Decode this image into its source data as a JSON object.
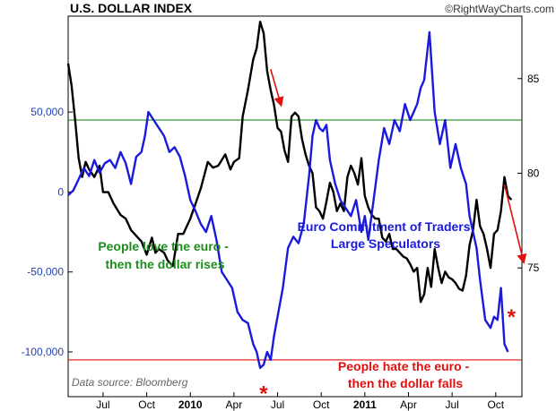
{
  "colors": {
    "top_line": "#000000",
    "bottom_line": "#1a1adc",
    "upper_threshold": "#1e8c1e",
    "lower_threshold": "#e01010",
    "arrow": "#e01010",
    "star": "#e01010"
  },
  "chart_data": [
    {
      "type": "line",
      "title": "U.S. DOLLAR INDEX",
      "credit": "©RightWayCharts.com",
      "source": "Data source: Bloomberg",
      "x_ticks": [
        {
          "x": 2009.5,
          "label": "Jul",
          "bold": false
        },
        {
          "x": 2009.75,
          "label": "Oct",
          "bold": false
        },
        {
          "x": 2010.0,
          "label": "2010",
          "bold": true
        },
        {
          "x": 2010.25,
          "label": "Apr",
          "bold": false
        },
        {
          "x": 2010.5,
          "label": "Jul",
          "bold": false
        },
        {
          "x": 2010.75,
          "label": "Oct",
          "bold": false
        },
        {
          "x": 2011.0,
          "label": "2011",
          "bold": true
        },
        {
          "x": 2011.25,
          "label": "Apr",
          "bold": false
        },
        {
          "x": 2011.5,
          "label": "Jul",
          "bold": false
        },
        {
          "x": 2011.75,
          "label": "Oct",
          "bold": false
        }
      ],
      "xlim": [
        2009.3,
        2011.9
      ],
      "y_ticks": [
        {
          "value": 75,
          "label": "75"
        },
        {
          "value": 80,
          "label": "80"
        },
        {
          "value": 85,
          "label": "85"
        }
      ],
      "ylim": [
        68.2,
        88.3
      ],
      "series": [
        {
          "x": [
            2009.3,
            2009.32,
            2009.34,
            2009.36,
            2009.38,
            2009.4,
            2009.42,
            2009.45,
            2009.48,
            2009.5,
            2009.53,
            2009.56,
            2009.6,
            2009.63,
            2009.66,
            2009.7,
            2009.72,
            2009.75,
            2009.78,
            2009.8,
            2009.82,
            2009.85,
            2009.87,
            2009.9,
            2009.93,
            2009.96,
            2010.0,
            2010.03,
            2010.06,
            2010.1,
            2010.13,
            2010.16,
            2010.2,
            2010.23,
            2010.25,
            2010.28,
            2010.3,
            2010.33,
            2010.36,
            2010.38,
            2010.4,
            2010.42,
            2010.44,
            2010.46,
            2010.48,
            2010.5,
            2010.52,
            2010.54,
            2010.56,
            2010.58,
            2010.6,
            2010.62,
            2010.64,
            2010.66,
            2010.68,
            2010.7,
            2010.72,
            2010.74,
            2010.76,
            2010.78,
            2010.8,
            2010.82,
            2010.84,
            2010.86,
            2010.88,
            2010.9,
            2010.92,
            2010.94,
            2010.96,
            2010.98,
            2011.0,
            2011.02,
            2011.04,
            2011.06,
            2011.08,
            2011.1,
            2011.12,
            2011.14,
            2011.16,
            2011.18,
            2011.2,
            2011.22,
            2011.24,
            2011.26,
            2011.28,
            2011.3,
            2011.32,
            2011.34,
            2011.36,
            2011.38,
            2011.4,
            2011.42,
            2011.44,
            2011.46,
            2011.48,
            2011.5,
            2011.52,
            2011.54,
            2011.56,
            2011.58,
            2011.6,
            2011.62,
            2011.64,
            2011.66,
            2011.68,
            2011.7,
            2011.72,
            2011.74,
            2011.76,
            2011.78,
            2011.8,
            2011.82,
            2011.84
          ],
          "y": [
            85.8,
            84.6,
            82.8,
            80.8,
            79.8,
            80.6,
            80.2,
            79.8,
            80.4,
            79.0,
            79.0,
            78.4,
            77.8,
            77.6,
            77.0,
            76.6,
            76.4,
            75.7,
            76.6,
            75.8,
            76.0,
            75.8,
            75.4,
            75.1,
            76.8,
            76.8,
            77.6,
            78.4,
            79.2,
            80.6,
            80.3,
            80.4,
            81.0,
            80.2,
            80.6,
            80.8,
            83.0,
            84.4,
            86.0,
            86.6,
            88.0,
            87.4,
            85.4,
            84.4,
            83.6,
            82.4,
            82.2,
            81.2,
            80.6,
            83.0,
            83.2,
            83.0,
            81.8,
            81.0,
            80.4,
            80.0,
            78.2,
            78.0,
            77.6,
            78.5,
            79.5,
            79.0,
            78.0,
            78.4,
            78.0,
            79.8,
            80.4,
            80.0,
            79.4,
            80.8,
            78.8,
            78.2,
            77.8,
            77.6,
            77.6,
            76.6,
            76.4,
            76.8,
            76.0,
            76.0,
            75.8,
            75.6,
            75.5,
            75.2,
            74.8,
            75.0,
            73.2,
            73.6,
            75.0,
            74.0,
            76.0,
            75.0,
            74.2,
            74.8,
            74.5,
            74.4,
            74.2,
            73.9,
            73.8,
            74.6,
            76.2,
            77.0,
            78.6,
            77.2,
            76.8,
            76.0,
            75.0,
            76.8,
            77.0,
            78.0,
            79.8,
            78.8,
            78.6
          ]
        }
      ],
      "annotations": [
        {
          "type": "arrow",
          "from": [
            2010.46,
            85.5
          ],
          "to": [
            2010.52,
            83.6
          ]
        },
        {
          "type": "arrow",
          "from": [
            2011.8,
            79.4
          ],
          "to": [
            2011.91,
            75.3
          ]
        }
      ]
    },
    {
      "type": "line",
      "title": "Euro Commitment of Traders\nLarge Speculators",
      "title_lines": [
        "Euro Commitment of Traders",
        "Large Speculators"
      ],
      "xlim": [
        2009.3,
        2011.9
      ],
      "y_ticks": [
        {
          "value": 50000,
          "label": "50,000"
        },
        {
          "value": 0,
          "label": "0"
        },
        {
          "value": -50000,
          "label": "-50,000"
        },
        {
          "value": -100000,
          "label": "-100,000"
        }
      ],
      "ylim": [
        -128000,
        110000
      ],
      "thresholds": [
        {
          "value": 45000,
          "color": "#1e8c1e",
          "label_lines": [
            "People love the euro -",
            "then the dollar rises"
          ]
        },
        {
          "value": -105000,
          "color": "#e01010",
          "label_lines": [
            "People hate the euro -",
            "then the dollar falls"
          ]
        }
      ],
      "series": [
        {
          "x": [
            2009.3,
            2009.33,
            2009.36,
            2009.39,
            2009.42,
            2009.45,
            2009.48,
            2009.51,
            2009.54,
            2009.57,
            2009.6,
            2009.63,
            2009.66,
            2009.69,
            2009.72,
            2009.74,
            2009.76,
            2009.79,
            2009.82,
            2009.85,
            2009.88,
            2009.91,
            2009.94,
            2009.97,
            2010.0,
            2010.03,
            2010.06,
            2010.09,
            2010.12,
            2010.15,
            2010.18,
            2010.21,
            2010.24,
            2010.27,
            2010.3,
            2010.33,
            2010.36,
            2010.38,
            2010.4,
            2010.42,
            2010.44,
            2010.46,
            2010.48,
            2010.5,
            2010.53,
            2010.56,
            2010.59,
            2010.62,
            2010.65,
            2010.68,
            2010.7,
            2010.72,
            2010.74,
            2010.76,
            2010.78,
            2010.8,
            2010.83,
            2010.86,
            2010.89,
            2010.92,
            2010.95,
            2010.98,
            2011.0,
            2011.02,
            2011.05,
            2011.08,
            2011.11,
            2011.14,
            2011.17,
            2011.2,
            2011.23,
            2011.26,
            2011.28,
            2011.3,
            2011.32,
            2011.34,
            2011.37,
            2011.4,
            2011.43,
            2011.46,
            2011.49,
            2011.52,
            2011.55,
            2011.58,
            2011.6,
            2011.62,
            2011.64,
            2011.66,
            2011.69,
            2011.72,
            2011.74,
            2011.76,
            2011.78,
            2011.8,
            2011.82
          ],
          "y": [
            -2000,
            1000,
            8000,
            15000,
            10000,
            20000,
            12000,
            18000,
            20000,
            15000,
            25000,
            18000,
            5000,
            22000,
            25000,
            35000,
            50000,
            45000,
            40000,
            35000,
            25000,
            28000,
            22000,
            10000,
            -5000,
            -12000,
            -20000,
            -25000,
            -15000,
            -30000,
            -50000,
            -55000,
            -60000,
            -75000,
            -80000,
            -82000,
            -95000,
            -100000,
            -110000,
            -108000,
            -100000,
            -105000,
            -90000,
            -78000,
            -60000,
            -35000,
            -28000,
            -32000,
            -20000,
            10000,
            35000,
            45000,
            40000,
            38000,
            42000,
            20000,
            5000,
            -5000,
            -10000,
            -15000,
            -5000,
            -25000,
            -15000,
            -30000,
            -5000,
            20000,
            40000,
            30000,
            45000,
            38000,
            55000,
            45000,
            50000,
            55000,
            65000,
            70000,
            100000,
            50000,
            30000,
            45000,
            15000,
            30000,
            15000,
            5000,
            -15000,
            -25000,
            -35000,
            -55000,
            -80000,
            -85000,
            -78000,
            -80000,
            -60000,
            -95000,
            -100000
          ]
        }
      ],
      "stars": [
        {
          "x": 2010.42,
          "y": -125000
        },
        {
          "x": 2011.84,
          "y": -77000
        }
      ]
    }
  ]
}
